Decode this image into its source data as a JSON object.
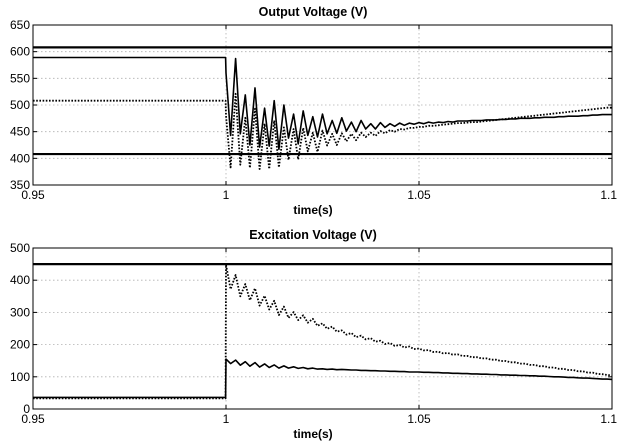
{
  "chart_data": [
    {
      "type": "line",
      "title": "Output Voltage (V)",
      "xlabel": "time(s)",
      "ylabel": "",
      "xlim": [
        0.95,
        1.1
      ],
      "ylim": [
        350,
        650
      ],
      "xticks": [
        0.95,
        1,
        1.05,
        1.1
      ],
      "xtick_labels": [
        "0.95",
        "1",
        "1.05",
        "1.1"
      ],
      "yticks": [
        350,
        400,
        450,
        500,
        550,
        600,
        650
      ],
      "ytick_labels": [
        "350",
        "400",
        "450",
        "500",
        "550",
        "600",
        "650"
      ],
      "grid": true,
      "legend": "none",
      "limits": [
        {
          "label": "",
          "y": 608
        },
        {
          "label": "",
          "y": 408
        }
      ],
      "series": [
        {
          "name": "",
          "style": "solid",
          "color": "#000000",
          "x": [
            0.95,
            0.9999,
            1.0,
            1.0012,
            1.0025,
            1.0037,
            1.005,
            1.0062,
            1.0075,
            1.0087,
            1.01,
            1.0112,
            1.0125,
            1.0137,
            1.015,
            1.0162,
            1.0175,
            1.0187,
            1.02,
            1.0212,
            1.0225,
            1.0237,
            1.025,
            1.0262,
            1.0275,
            1.0287,
            1.03,
            1.0312,
            1.0325,
            1.0337,
            1.035,
            1.0362,
            1.0375,
            1.0387,
            1.04,
            1.0412,
            1.0425,
            1.0437,
            1.045,
            1.0462,
            1.0475,
            1.0487,
            1.05,
            1.0512,
            1.0525,
            1.0537,
            1.055,
            1.0562,
            1.0575,
            1.0587,
            1.06,
            1.0612,
            1.0625,
            1.0637,
            1.065,
            1.0662,
            1.0675,
            1.0687,
            1.07,
            1.0712,
            1.0725,
            1.0737,
            1.075,
            1.0762,
            1.0775,
            1.0787,
            1.08,
            1.0812,
            1.0825,
            1.0837,
            1.085,
            1.0862,
            1.0875,
            1.0887,
            1.09,
            1.0912,
            1.0925,
            1.0937,
            1.095,
            1.0962,
            1.0975,
            1.0987,
            1.1
          ],
          "values": [
            589,
            589,
            560,
            443,
            587,
            446,
            519,
            425,
            532,
            421,
            494,
            423,
            508,
            417,
            500,
            438,
            483,
            427,
            489,
            443,
            478,
            440,
            483,
            446,
            471,
            447,
            476,
            451,
            468,
            450,
            471,
            455,
            465,
            455,
            467,
            458,
            465,
            460,
            466,
            462,
            466,
            464,
            467,
            465,
            468,
            466,
            468,
            467,
            469,
            468,
            470,
            470,
            470,
            471,
            471,
            471,
            472,
            472,
            472,
            473,
            473,
            474,
            474,
            475,
            475,
            475,
            476,
            476,
            477,
            477,
            477,
            478,
            478,
            479,
            479,
            479,
            480,
            480,
            481,
            481,
            482,
            482,
            482
          ]
        },
        {
          "name": "",
          "style": "dotted",
          "color": "#000000",
          "x": [
            0.95,
            0.9999,
            1.0,
            1.0012,
            1.0025,
            1.0037,
            1.005,
            1.0062,
            1.0075,
            1.0087,
            1.01,
            1.0112,
            1.0125,
            1.0137,
            1.015,
            1.0162,
            1.0175,
            1.0187,
            1.02,
            1.0212,
            1.0225,
            1.0237,
            1.025,
            1.0262,
            1.0275,
            1.0287,
            1.03,
            1.0312,
            1.0325,
            1.0337,
            1.035,
            1.0362,
            1.0375,
            1.0387,
            1.04,
            1.0412,
            1.0425,
            1.0437,
            1.045,
            1.0462,
            1.0475,
            1.0487,
            1.05,
            1.0512,
            1.0525,
            1.0537,
            1.055,
            1.0562,
            1.0575,
            1.0587,
            1.06,
            1.0612,
            1.0625,
            1.0637,
            1.065,
            1.0662,
            1.0675,
            1.0687,
            1.07,
            1.0712,
            1.0725,
            1.0737,
            1.075,
            1.0762,
            1.0775,
            1.0787,
            1.08,
            1.0812,
            1.0825,
            1.0837,
            1.085,
            1.0862,
            1.0875,
            1.0887,
            1.09,
            1.0912,
            1.0925,
            1.0937,
            1.095,
            1.0962,
            1.0975,
            1.0987,
            1.1
          ],
          "values": [
            508,
            508,
            480,
            383,
            521,
            388,
            476,
            382,
            493,
            380,
            465,
            380,
            471,
            383,
            458,
            397,
            455,
            398,
            457,
            413,
            448,
            412,
            452,
            424,
            446,
            425,
            447,
            432,
            446,
            434,
            448,
            440,
            448,
            442,
            451,
            447,
            453,
            450,
            455,
            454,
            457,
            457,
            459,
            459,
            461,
            461,
            462,
            463,
            464,
            465,
            466,
            466,
            467,
            468,
            468,
            469,
            470,
            471,
            472,
            473,
            474,
            475,
            476,
            477,
            478,
            479,
            480,
            481,
            482,
            483,
            484,
            485,
            486,
            487,
            488,
            489,
            490,
            491,
            492,
            493,
            494,
            495,
            495
          ]
        }
      ]
    },
    {
      "type": "line",
      "title": "Excitation Voltage (V)",
      "xlabel": "time(s)",
      "ylabel": "",
      "xlim": [
        0.95,
        1.1
      ],
      "ylim": [
        0,
        500
      ],
      "xticks": [
        0.95,
        1,
        1.05,
        1.1
      ],
      "xtick_labels": [
        "0.95",
        "1",
        "1.05",
        "1.1"
      ],
      "yticks": [
        0,
        100,
        200,
        300,
        400,
        500
      ],
      "ytick_labels": [
        "0",
        "100",
        "200",
        "300",
        "400",
        "500"
      ],
      "grid": true,
      "legend": "none",
      "limits": [
        {
          "label": "",
          "y": 450
        }
      ],
      "series": [
        {
          "name": "",
          "style": "solid",
          "color": "#000000",
          "x": [
            0.95,
            0.9999,
            1.0,
            1.0012,
            1.0025,
            1.0037,
            1.005,
            1.0062,
            1.0075,
            1.0087,
            1.01,
            1.0112,
            1.0125,
            1.0137,
            1.015,
            1.0162,
            1.0175,
            1.0187,
            1.02,
            1.0212,
            1.0225,
            1.0237,
            1.025,
            1.0262,
            1.0275,
            1.0287,
            1.03,
            1.0312,
            1.0325,
            1.0337,
            1.035,
            1.0362,
            1.0375,
            1.0387,
            1.04,
            1.0412,
            1.0425,
            1.0437,
            1.045,
            1.0462,
            1.0475,
            1.0487,
            1.05,
            1.0512,
            1.0525,
            1.0537,
            1.055,
            1.0562,
            1.0575,
            1.0587,
            1.06,
            1.0612,
            1.0625,
            1.0637,
            1.065,
            1.0662,
            1.0675,
            1.0687,
            1.07,
            1.0712,
            1.0725,
            1.0737,
            1.075,
            1.0762,
            1.0775,
            1.0787,
            1.08,
            1.0812,
            1.0825,
            1.0837,
            1.085,
            1.0862,
            1.0875,
            1.0887,
            1.09,
            1.0912,
            1.0925,
            1.0937,
            1.095,
            1.0962,
            1.0975,
            1.0987,
            1.1
          ],
          "values": [
            36,
            36,
            155,
            141,
            152,
            136,
            147,
            133,
            144,
            130,
            140,
            129,
            137,
            127,
            134,
            127,
            131,
            126,
            129,
            125,
            127,
            124,
            125,
            123,
            124,
            122,
            123,
            122,
            121,
            121,
            120,
            120,
            119,
            119,
            118,
            118,
            117,
            117,
            116,
            116,
            115,
            115,
            115,
            114,
            114,
            113,
            113,
            112,
            112,
            111,
            111,
            110,
            110,
            109,
            109,
            108,
            108,
            107,
            107,
            106,
            106,
            105,
            105,
            104,
            104,
            103,
            103,
            102,
            102,
            101,
            100,
            100,
            99,
            98,
            98,
            97,
            96,
            96,
            95,
            94,
            93,
            93,
            92
          ]
        },
        {
          "name": "",
          "style": "dotted",
          "color": "#000000",
          "x": [
            0.95,
            0.9999,
            1.0,
            1.0012,
            1.0025,
            1.0037,
            1.005,
            1.0062,
            1.0075,
            1.0087,
            1.01,
            1.0112,
            1.0125,
            1.0137,
            1.015,
            1.0162,
            1.0175,
            1.0187,
            1.02,
            1.0212,
            1.0225,
            1.0237,
            1.025,
            1.0262,
            1.0275,
            1.0287,
            1.03,
            1.0312,
            1.0325,
            1.0337,
            1.035,
            1.0362,
            1.0375,
            1.0387,
            1.04,
            1.0412,
            1.0425,
            1.0437,
            1.045,
            1.0462,
            1.0475,
            1.0487,
            1.05,
            1.0512,
            1.0525,
            1.0537,
            1.055,
            1.0562,
            1.0575,
            1.0587,
            1.06,
            1.0612,
            1.0625,
            1.0637,
            1.065,
            1.0662,
            1.0675,
            1.0687,
            1.07,
            1.0712,
            1.0725,
            1.0737,
            1.075,
            1.0762,
            1.0775,
            1.0787,
            1.08,
            1.0812,
            1.0825,
            1.0837,
            1.085,
            1.0862,
            1.0875,
            1.0887,
            1.09,
            1.0912,
            1.0925,
            1.0937,
            1.095,
            1.0962,
            1.0975,
            1.0987,
            1.1
          ],
          "values": [
            33,
            33,
            448,
            372,
            416,
            350,
            388,
            338,
            375,
            321,
            352,
            309,
            336,
            292,
            318,
            283,
            301,
            276,
            291,
            268,
            280,
            258,
            266,
            249,
            256,
            240,
            244,
            231,
            236,
            223,
            228,
            216,
            220,
            209,
            212,
            202,
            205,
            196,
            199,
            191,
            194,
            186,
            188,
            182,
            183,
            177,
            178,
            173,
            174,
            169,
            170,
            165,
            165,
            161,
            161,
            157,
            157,
            153,
            153,
            149,
            149,
            145,
            145,
            141,
            141,
            137,
            137,
            133,
            133,
            129,
            129,
            125,
            125,
            121,
            121,
            117,
            117,
            113,
            113,
            109,
            108,
            106,
            104
          ]
        }
      ]
    }
  ]
}
